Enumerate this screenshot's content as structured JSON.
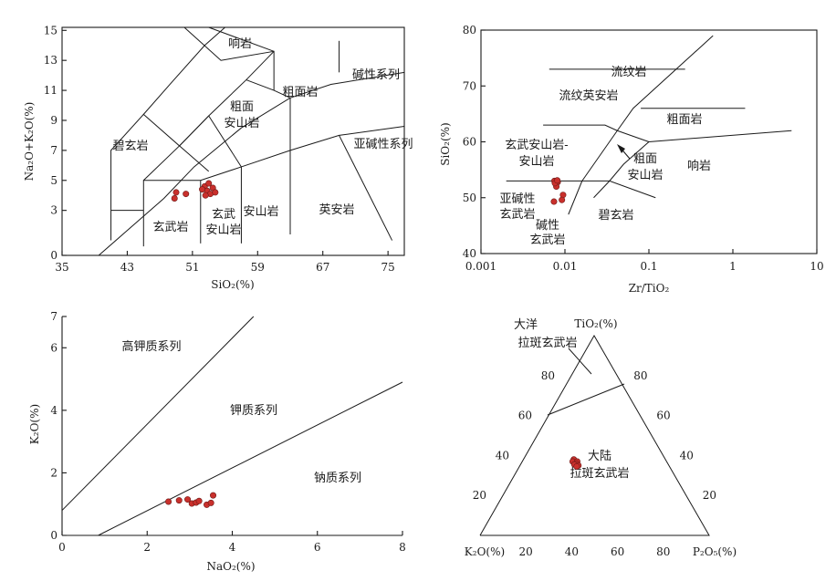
{
  "chart_data": [
    {
      "type": "scatter",
      "id": "tas",
      "xlabel": "SiO₂(%)",
      "ylabel": "Na₂O+K₂O(%)",
      "x_ticks": [
        "35",
        "43",
        "51",
        "59",
        "67",
        "75"
      ],
      "y_ticks": [
        "0",
        "3",
        "5",
        "7",
        "9",
        "11",
        "13",
        "15"
      ],
      "xlim": [
        35,
        77
      ],
      "ylim": [
        0,
        15.2
      ],
      "field_labels": [
        "响岩",
        "粗面岩",
        "碱性系列",
        "粗面",
        "安山岩",
        "碧玄岩",
        "亚碱性系列",
        "玄武",
        "安山岩",
        "安山岩",
        "英安岩",
        "玄武岩"
      ],
      "points": [
        {
          "x": 49.0,
          "y": 4.2
        },
        {
          "x": 48.8,
          "y": 3.8
        },
        {
          "x": 50.2,
          "y": 4.1
        },
        {
          "x": 52.5,
          "y": 4.6
        },
        {
          "x": 52.8,
          "y": 4.3
        },
        {
          "x": 53.2,
          "y": 4.1
        },
        {
          "x": 53.5,
          "y": 4.5
        },
        {
          "x": 52.2,
          "y": 4.4
        },
        {
          "x": 53.8,
          "y": 4.2
        },
        {
          "x": 52.6,
          "y": 4.0
        },
        {
          "x": 53.0,
          "y": 4.8
        }
      ]
    },
    {
      "type": "scatter",
      "id": "zr_tio2",
      "xlabel": "Zr/TiO₂",
      "ylabel": "SiO₂(%)",
      "x_scale": "log",
      "x_ticks": [
        "0.001",
        "0.01",
        "0.1",
        "1",
        "10"
      ],
      "y_ticks": [
        "40",
        "50",
        "60",
        "70",
        "80"
      ],
      "xlim": [
        0.001,
        10
      ],
      "ylim": [
        40,
        80
      ],
      "field_labels": [
        "流纹岩",
        "流纹英安岩",
        "粗面岩",
        "玄武安山岩-",
        "安山岩",
        "粗面",
        "安山岩",
        "响岩",
        "亚碱性",
        "玄武岩",
        "碧玄岩",
        "碱性",
        "玄武岩"
      ],
      "points": [
        {
          "x": 0.0075,
          "y": 53.0
        },
        {
          "x": 0.0078,
          "y": 52.5
        },
        {
          "x": 0.0082,
          "y": 52.8
        },
        {
          "x": 0.0079,
          "y": 52.0
        },
        {
          "x": 0.0076,
          "y": 52.6
        },
        {
          "x": 0.0081,
          "y": 53.1
        },
        {
          "x": 0.0095,
          "y": 50.5
        },
        {
          "x": 0.0074,
          "y": 49.3
        },
        {
          "x": 0.0092,
          "y": 49.6
        }
      ]
    },
    {
      "type": "scatter",
      "id": "k2o_na2o",
      "xlabel": "NaO₂(%)",
      "ylabel": "K₂O(%)",
      "x_ticks": [
        "0",
        "2",
        "4",
        "6",
        "8"
      ],
      "y_ticks": [
        "0",
        "2",
        "4",
        "6",
        "7"
      ],
      "xlim": [
        0,
        8
      ],
      "ylim": [
        0,
        7
      ],
      "field_labels": [
        "高钾质系列",
        "钾质系列",
        "钠质系列"
      ],
      "points": [
        {
          "x": 2.5,
          "y": 1.08
        },
        {
          "x": 2.75,
          "y": 1.12
        },
        {
          "x": 2.95,
          "y": 1.15
        },
        {
          "x": 3.05,
          "y": 1.02
        },
        {
          "x": 3.15,
          "y": 1.05
        },
        {
          "x": 3.22,
          "y": 1.1
        },
        {
          "x": 3.4,
          "y": 0.98
        },
        {
          "x": 3.5,
          "y": 1.04
        },
        {
          "x": 3.55,
          "y": 1.28
        }
      ]
    },
    {
      "type": "scatter",
      "id": "ternary",
      "apex_labels": [
        "TiO₂(%)",
        "K₂O(%)",
        "P₂O₅(%)"
      ],
      "left_ticks": [
        "20",
        "40",
        "60",
        "80"
      ],
      "right_ticks": [
        "80",
        "60",
        "40",
        "20"
      ],
      "bottom_ticks": [
        "20",
        "40",
        "60",
        "80"
      ],
      "field_labels": [
        "大洋",
        "拉斑玄武岩",
        "大陆",
        "拉斑玄武岩"
      ],
      "points": [
        {
          "k2o": 40,
          "tio2": 38,
          "p2o5": 22
        },
        {
          "k2o": 41,
          "tio2": 37,
          "p2o5": 22
        },
        {
          "k2o": 39,
          "tio2": 37,
          "p2o5": 24
        },
        {
          "k2o": 40,
          "tio2": 36,
          "p2o5": 24
        },
        {
          "k2o": 41,
          "tio2": 35.5,
          "p2o5": 23.5
        },
        {
          "k2o": 39.5,
          "tio2": 35,
          "p2o5": 25.5
        },
        {
          "k2o": 40.5,
          "tio2": 34.5,
          "p2o5": 25
        }
      ]
    }
  ]
}
